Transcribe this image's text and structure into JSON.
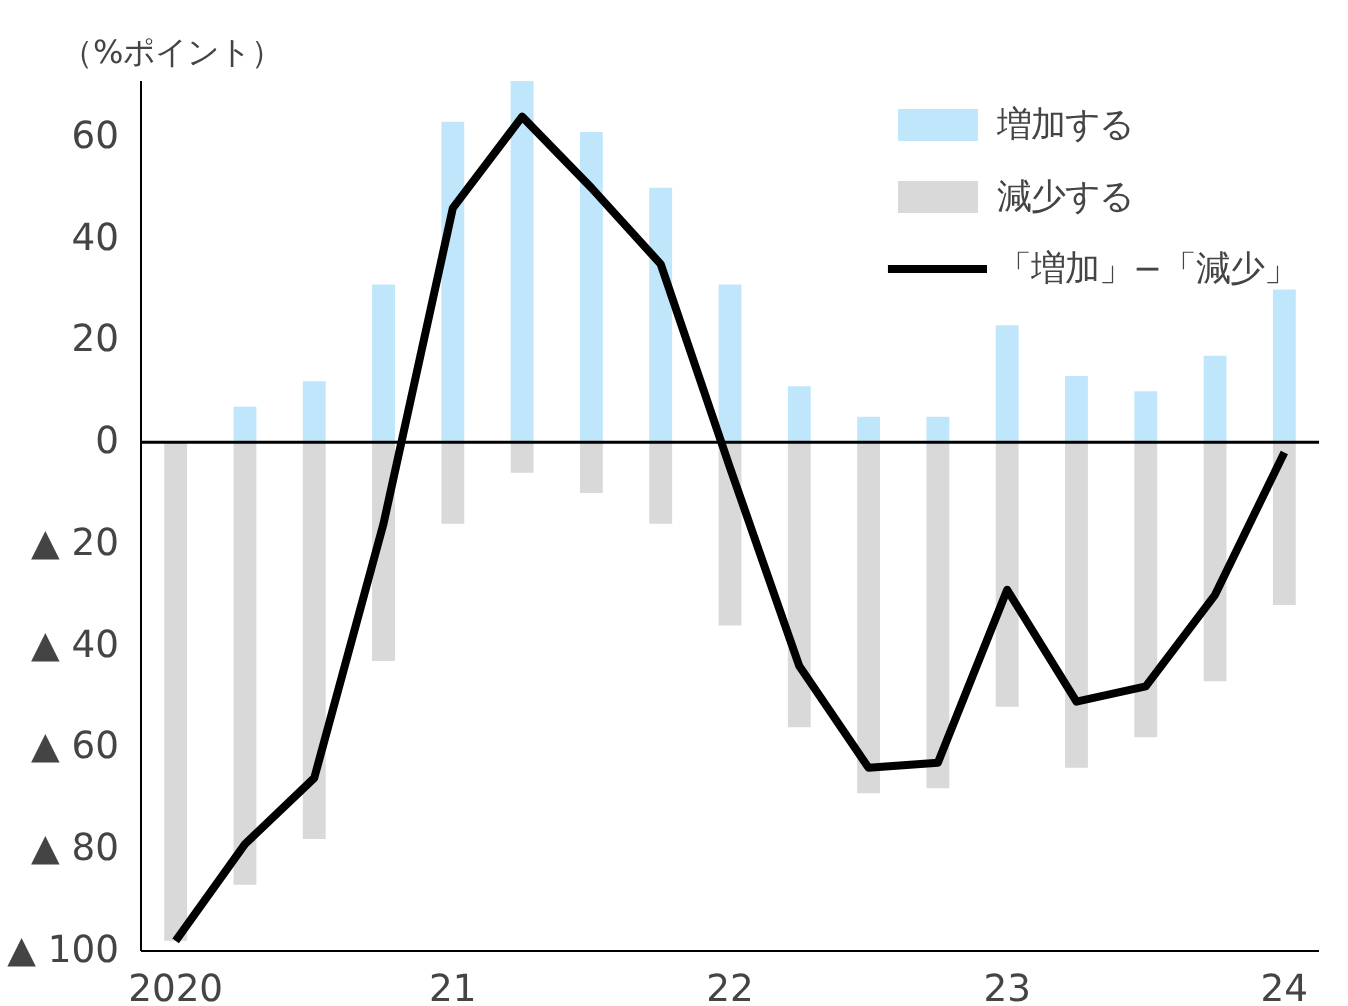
{
  "chart_data": {
    "type": "bar",
    "ylabel": "（%ポイント）",
    "stacked": true,
    "categories": [
      "2020",
      null,
      null,
      null,
      "21",
      null,
      null,
      null,
      "22",
      null,
      null,
      null,
      "23",
      null,
      null,
      null,
      "24"
    ],
    "series": [
      {
        "name": "増加する",
        "color": "#bfe6fb",
        "values": [
          0,
          7,
          12,
          31,
          63,
          71,
          61,
          50,
          31,
          11,
          5,
          5,
          23,
          13,
          10,
          17,
          30
        ]
      },
      {
        "name": "減少する",
        "color": "#d9d9d9",
        "values": [
          -98,
          -87,
          -78,
          -43,
          -16,
          -6,
          -10,
          -16,
          -36,
          -56,
          -69,
          -68,
          -52,
          -64,
          -58,
          -47,
          -32
        ]
      },
      {
        "name": "「増加」−「減少」",
        "type": "line",
        "color": "#000000",
        "values": [
          -98,
          -79,
          -66,
          -16,
          46,
          64,
          50,
          35,
          -5,
          -44,
          -64,
          -63,
          -29,
          -51,
          -48,
          -30,
          -2
        ]
      }
    ],
    "ylim": [
      -100,
      71
    ],
    "yticks": [
      {
        "value": -100,
        "label": "▲ 100"
      },
      {
        "value": -80,
        "label": "▲ 80"
      },
      {
        "value": -60,
        "label": "▲ 60"
      },
      {
        "value": -40,
        "label": "▲ 40"
      },
      {
        "value": -20,
        "label": "▲ 20"
      },
      0,
      20,
      40,
      60
    ],
    "ref_lines": [
      {
        "axis": "y",
        "value": 0,
        "color": "#000000"
      }
    ],
    "grid": false,
    "legend": "top right",
    "line_style": "solid",
    "marker": "none"
  }
}
